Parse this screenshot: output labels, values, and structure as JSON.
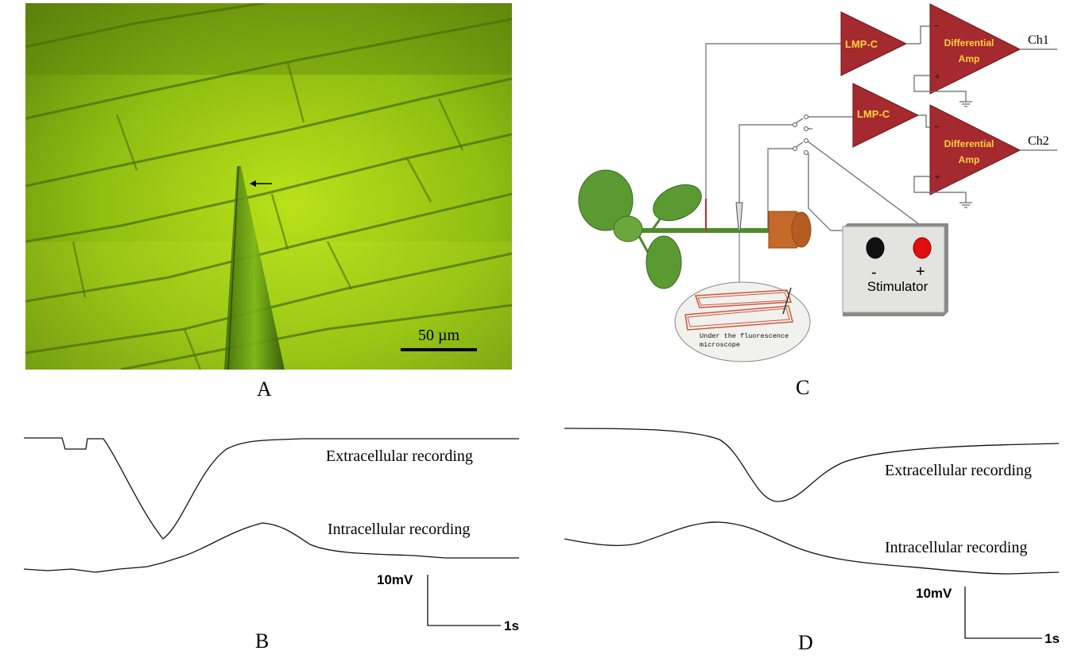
{
  "panels": {
    "a": {
      "letter": "A",
      "scale_bar_label": "50 µm"
    },
    "b": {
      "letter": "B",
      "extracellular_label": "Extracellular recording",
      "intracellular_label": "Intracellular recording",
      "scale_voltage": "10mV",
      "scale_time": "1s"
    },
    "c": {
      "letter": "C",
      "amp1": {
        "lmp_label": "LMP-C",
        "diff_label_line1": "Differential",
        "diff_label_line2": "Amp",
        "channel": "Ch1"
      },
      "amp2": {
        "lmp_label": "LMP-C",
        "diff_label_line1": "Differential",
        "diff_label_line2": "Amp",
        "channel": "Ch2"
      },
      "stimulator": {
        "label": "Stimulator",
        "minus": "-",
        "plus": "+"
      },
      "microscope_inset": {
        "line1": "Under the fluorescence",
        "line2": "microscope"
      },
      "amp_minus": "−",
      "amp_plus": "+"
    },
    "d": {
      "letter": "D",
      "extracellular_label": "Extracellular recording",
      "intracellular_label": "Intracellular recording",
      "scale_voltage": "10mV",
      "scale_time": "1s"
    }
  },
  "colors": {
    "micrograph_green": "#8fbd12",
    "amp_fill": "#a52a2f",
    "amp_text": "#ffd23a",
    "stimulator_box": "#e3e3e0",
    "pot": "#c4692a"
  }
}
